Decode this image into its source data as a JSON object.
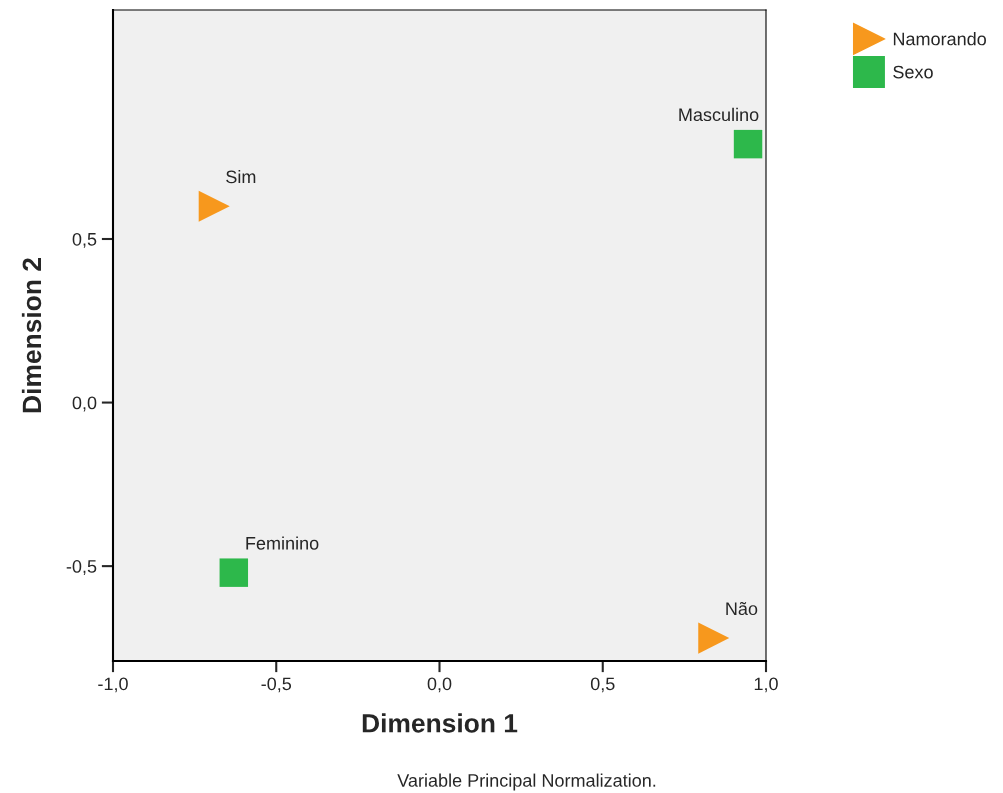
{
  "chart_data": {
    "type": "scatter",
    "xlabel": "Dimension 1",
    "ylabel": "Dimension 2",
    "xlim": [
      -1.0,
      1.0
    ],
    "ylim": [
      -0.79,
      1.2
    ],
    "xticks": [
      {
        "value": -1.0,
        "label": "-1,0"
      },
      {
        "value": -0.5,
        "label": "-0,5"
      },
      {
        "value": 0.0,
        "label": "0,0"
      },
      {
        "value": 0.5,
        "label": "0,5"
      },
      {
        "value": 1.0,
        "label": "1,0"
      }
    ],
    "yticks": [
      {
        "value": -0.5,
        "label": "-0,5"
      },
      {
        "value": 0.0,
        "label": "0,0"
      },
      {
        "value": 0.5,
        "label": "0,5"
      }
    ],
    "grid": false,
    "legend": "top right",
    "series": [
      {
        "name": "Namorando",
        "color": "#f7981d",
        "marker": "triangle",
        "x": [
          -0.69,
          0.84
        ],
        "values": [
          0.6,
          -0.72
        ]
      },
      {
        "name": "Sexo",
        "color": "#2db84b",
        "marker": "square",
        "x": [
          -0.63,
          0.945
        ],
        "values": [
          -0.52,
          0.79
        ]
      }
    ],
    "annotations": [
      {
        "text": "Sim",
        "x": -0.69,
        "y": 0.6
      },
      {
        "text": "Não",
        "x": 0.84,
        "y": -0.72
      },
      {
        "text": "Feminino",
        "x": -0.63,
        "y": -0.52
      },
      {
        "text": "Masculino",
        "x": 0.945,
        "y": 0.79
      },
      "Variable Principal Normalization."
    ]
  }
}
